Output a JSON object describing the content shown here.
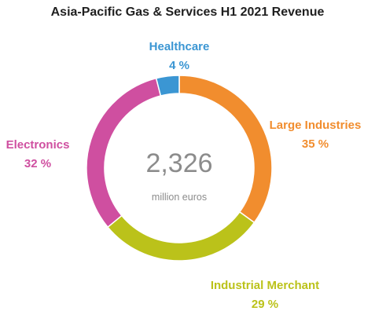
{
  "chart_data": {
    "type": "pie",
    "title": "Asia-Pacific Gas & Services H1 2021 Revenue",
    "center_total": "2,326",
    "center_unit": "million euros",
    "categories": [
      "Large Industries",
      "Industrial Merchant",
      "Electronics",
      "Healthcare"
    ],
    "values": [
      35,
      29,
      32,
      4
    ],
    "value_labels": [
      "35 %",
      "29 %",
      "32 %",
      "4 %"
    ],
    "colors": [
      "#F18D2E",
      "#BBC21A",
      "#CF4FA0",
      "#3B96D3"
    ]
  }
}
